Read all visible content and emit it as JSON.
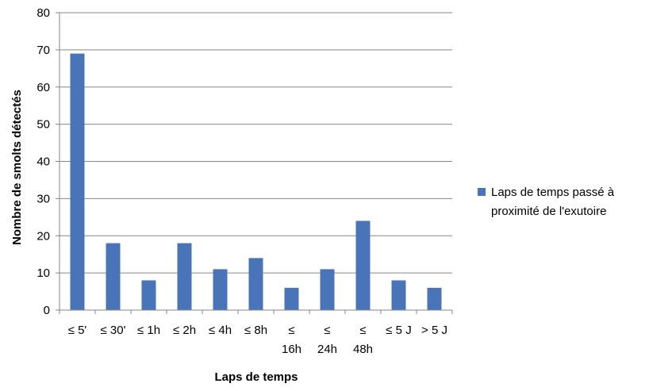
{
  "chart_data": {
    "type": "bar",
    "categories": [
      "≤ 5'",
      "≤ 30'",
      "≤ 1h",
      "≤ 2h",
      "≤ 4h",
      "≤ 8h",
      "≤ 16h",
      "≤ 24h",
      "≤ 48h",
      "≤ 5 J",
      "> 5 J"
    ],
    "category_lines": [
      [
        "≤ 5'"
      ],
      [
        "≤ 30'"
      ],
      [
        "≤ 1h"
      ],
      [
        "≤ 2h"
      ],
      [
        "≤ 4h"
      ],
      [
        "≤ 8h"
      ],
      [
        "≤",
        "16h"
      ],
      [
        "≤",
        "24h"
      ],
      [
        "≤",
        "48h"
      ],
      [
        "≤ 5 J"
      ],
      [
        "> 5 J"
      ]
    ],
    "series": [
      {
        "name": "Laps de temps passé à proximité de l'exutoire",
        "values": [
          69,
          18,
          8,
          18,
          11,
          14,
          6,
          11,
          24,
          8,
          6
        ]
      }
    ],
    "legend_lines": [
      "Laps de temps passé à",
      "proximité de l'exutoire"
    ],
    "xlabel": "Laps de temps",
    "ylabel": "Nombre de smolts détectés",
    "ylim": [
      0,
      80
    ],
    "yticks": [
      0,
      10,
      20,
      30,
      40,
      50,
      60,
      70,
      80
    ],
    "grid": true,
    "legend_position": "right",
    "colors": {
      "bar": "#4a74b8",
      "grid": "#868686",
      "axis": "#868686"
    }
  }
}
